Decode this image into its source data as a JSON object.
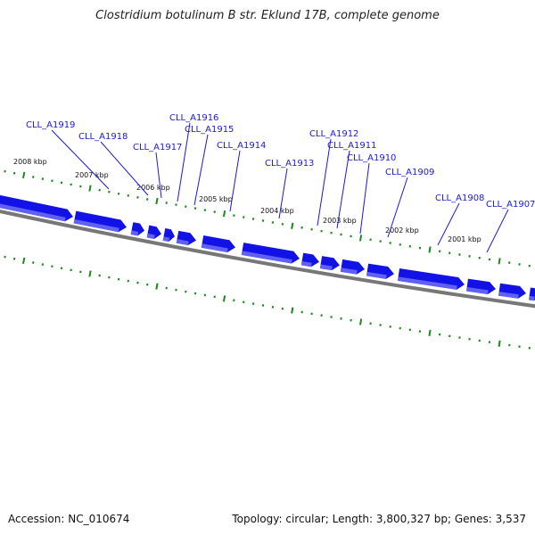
{
  "title": "Clostridium botulinum B str. Eklund 17B, complete genome",
  "footer": {
    "accession": "Accession: NC_010674",
    "summary": "Topology: circular; Length: 3,800,327 bp; Genes: 3,537"
  },
  "colors": {
    "gene": "#1212e6",
    "gene_light": "#6a6af2",
    "backbone": "#777777",
    "tick": "#1a8a1a",
    "label": "#1a1ad6"
  },
  "tick_labels": [
    "2008 kbp",
    "2007 kbp",
    "2006 kbp",
    "2005 kbp",
    "2004 kbp",
    "2003 kbp",
    "2002 kbp",
    "2001 kbp"
  ],
  "gene_labels": [
    "CLL_A1919",
    "CLL_A1918",
    "CLL_A1917",
    "CLL_A1916",
    "CLL_A1915",
    "CLL_A1914",
    "CLL_A1913",
    "CLL_A1912",
    "CLL_A1911",
    "CLL_A1910",
    "CLL_A1909",
    "CLL_A1908",
    "CLL_A1907"
  ]
}
